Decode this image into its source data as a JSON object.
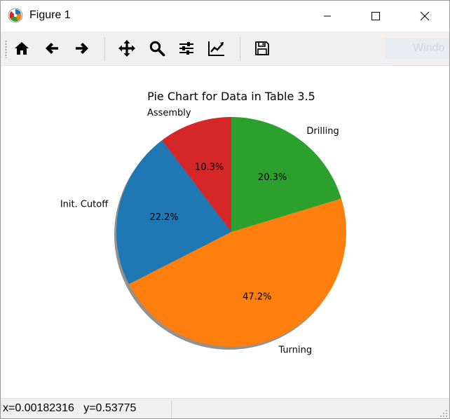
{
  "window": {
    "title": "Figure 1",
    "icon": "matplotlib-logo-icon",
    "controls": [
      "minimize-icon",
      "maximize-icon",
      "close-icon"
    ]
  },
  "toolbar": {
    "buttons": [
      "home-icon",
      "back-arrow-icon",
      "forward-arrow-icon",
      "pan-icon",
      "zoom-icon",
      "subplots-icon",
      "edit-axis-icon",
      "save-icon"
    ],
    "window_label": "Windo"
  },
  "chart_data": {
    "type": "pie",
    "title": "Pie Chart for Data in Table 3.5",
    "slices": [
      {
        "label": "Assembly",
        "value": 10.3,
        "pct_label": "10.3%",
        "color": "#d62728"
      },
      {
        "label": "Init. Cutoff",
        "value": 22.2,
        "pct_label": "22.2%",
        "color": "#1f77b4"
      },
      {
        "label": "Turning",
        "value": 47.2,
        "pct_label": "47.2%",
        "color": "#ff7f0e"
      },
      {
        "label": "Drilling",
        "value": 20.3,
        "pct_label": "20.3%",
        "color": "#2ca02c"
      }
    ],
    "start_angle_deg": 90,
    "direction": "counterclockwise",
    "shadow": true
  },
  "statusbar": {
    "coords": "x=0.00182316   y=0.53775"
  }
}
